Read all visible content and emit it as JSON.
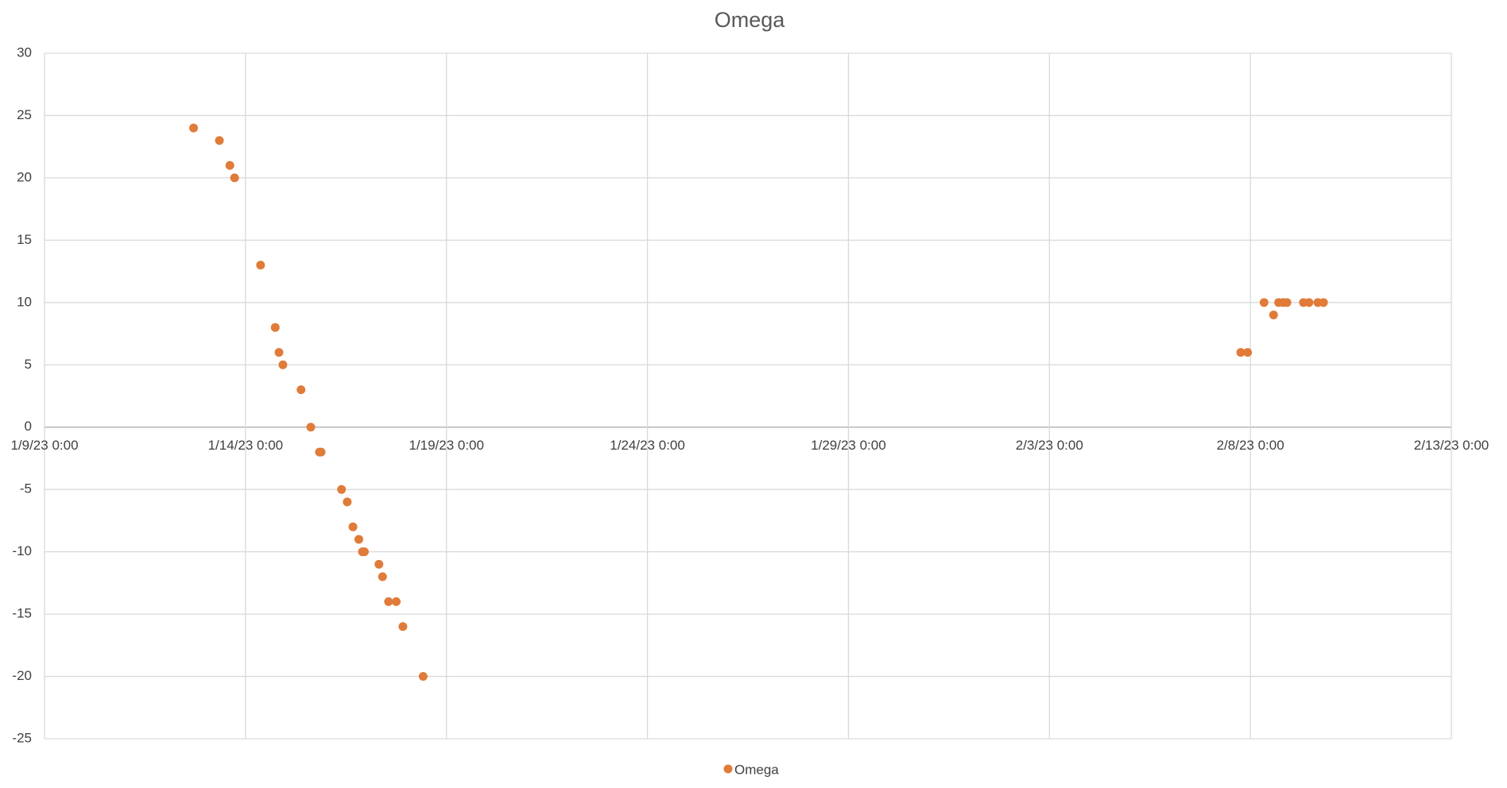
{
  "chart_data": {
    "type": "scatter",
    "title": "Omega",
    "xlim": [
      "2023-01-09T00:00",
      "2023-02-13T00:00"
    ],
    "xticks": [
      {
        "value": "2023-01-09T00:00",
        "label": "1/9/23 0:00"
      },
      {
        "value": "2023-01-14T00:00",
        "label": "1/14/23 0:00"
      },
      {
        "value": "2023-01-19T00:00",
        "label": "1/19/23 0:00"
      },
      {
        "value": "2023-01-24T00:00",
        "label": "1/24/23 0:00"
      },
      {
        "value": "2023-01-29T00:00",
        "label": "1/29/23 0:00"
      },
      {
        "value": "2023-02-03T00:00",
        "label": "2/3/23 0:00"
      },
      {
        "value": "2023-02-08T00:00",
        "label": "2/8/23 0:00"
      },
      {
        "value": "2023-02-13T00:00",
        "label": "2/13/23 0:00"
      }
    ],
    "ylim": [
      -25,
      30
    ],
    "yticks": [
      -25,
      -20,
      -15,
      -10,
      -5,
      0,
      5,
      10,
      15,
      20,
      25,
      30
    ],
    "grid": true,
    "series": [
      {
        "name": "Omega",
        "color": "#e07b39",
        "x": [
          "2023-01-12T17:00",
          "2023-01-13T08:25",
          "2023-01-13T14:40",
          "2023-01-13T17:30",
          "2023-01-14T09:00",
          "2023-01-14T17:45",
          "2023-01-14T20:00",
          "2023-01-14T22:20",
          "2023-01-15T09:10",
          "2023-01-15T15:00",
          "2023-01-15T20:10",
          "2023-01-15T21:10",
          "2023-01-16T09:20",
          "2023-01-16T12:45",
          "2023-01-16T16:10",
          "2023-01-16T19:40",
          "2023-01-16T21:50",
          "2023-01-16T23:00",
          "2023-01-17T07:40",
          "2023-01-17T09:50",
          "2023-01-17T13:25",
          "2023-01-17T18:00",
          "2023-01-17T22:00",
          "2023-01-18T10:05",
          "2023-02-07T18:15",
          "2023-02-07T22:20",
          "2023-02-08T08:10",
          "2023-02-08T13:50",
          "2023-02-08T16:50",
          "2023-02-08T19:40",
          "2023-02-08T21:50",
          "2023-02-09T07:40",
          "2023-02-09T11:00",
          "2023-02-09T16:15",
          "2023-02-09T19:40"
        ],
        "values": [
          24,
          23,
          21,
          20,
          13,
          8,
          6,
          5,
          3,
          0,
          -2,
          -2,
          -5,
          -6,
          -8,
          -9,
          -10,
          -10,
          -11,
          -12,
          -14,
          -14,
          -16,
          -20,
          6,
          6,
          10,
          9,
          10,
          10,
          10,
          10,
          10,
          10,
          10
        ]
      }
    ]
  }
}
